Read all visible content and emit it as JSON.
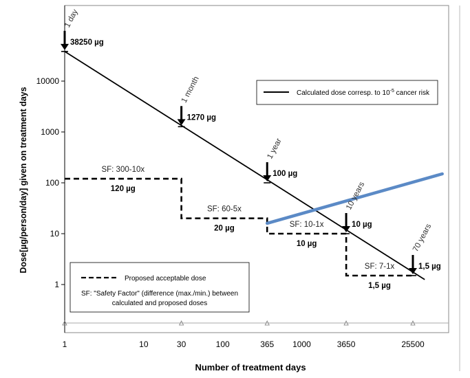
{
  "chart_data": {
    "type": "line",
    "xlabel": "Number of treatment days",
    "ylabel": "Dose[µg/person/day]  given on treatment days",
    "x_scale": "log",
    "y_scale": "log",
    "xlim": [
      1,
      60000
    ],
    "ylim": [
      0.09,
      50000
    ],
    "x_ticks": [
      {
        "value": 1,
        "label": "1"
      },
      {
        "value": 10,
        "label": "10"
      },
      {
        "value": 30,
        "label": "30"
      },
      {
        "value": 100,
        "label": "100"
      },
      {
        "value": 365,
        "label": "365"
      },
      {
        "value": 1000,
        "label": "1000"
      },
      {
        "value": 3650,
        "label": "3650"
      },
      {
        "value": 25500,
        "label": "25500"
      }
    ],
    "y_ticks": [
      {
        "value": 10000,
        "label": "10000"
      },
      {
        "value": 1000,
        "label": "1000"
      },
      {
        "value": 100,
        "label": "100"
      },
      {
        "value": 10,
        "label": "10"
      },
      {
        "value": 1,
        "label": "1"
      }
    ],
    "grid": false,
    "series": [
      {
        "name": "Calculated dose corresp. to 10⁻⁵ cancer risk",
        "style": "solid",
        "color": "#000000",
        "x": [
          1,
          36000
        ],
        "y": [
          38250,
          1.25
        ]
      },
      {
        "name": "Proposed acceptable dose",
        "style": "dashed",
        "color": "#000000",
        "x": [
          1,
          30,
          30,
          365,
          365,
          3650,
          3650,
          25500
        ],
        "y": [
          120,
          120,
          20,
          20,
          10,
          10,
          1.5,
          1.5
        ]
      },
      {
        "name": "",
        "style": "solid",
        "color": "#5b8ac6",
        "x": [
          365,
          60000
        ],
        "y": [
          16,
          150
        ]
      }
    ],
    "time_markers": [
      {
        "x": 1,
        "y": 38250,
        "period": "1 day",
        "value": "38250 µg"
      },
      {
        "x": 30,
        "y": 1270,
        "period": "1 month",
        "value": "1270 µg"
      },
      {
        "x": 365,
        "y": 100,
        "period": "1 year",
        "value": "100 µg"
      },
      {
        "x": 3650,
        "y": 10,
        "period": "10 years",
        "value": "10 µg"
      },
      {
        "x": 25500,
        "y": 1.5,
        "period": "70 years",
        "value": "1,5 µg"
      }
    ],
    "segment_labels": [
      {
        "sf": "SF: 300-10x",
        "dose": "120 µg"
      },
      {
        "sf": "SF: 60-5x",
        "dose": "20 µg"
      },
      {
        "sf": "SF: 10-1x",
        "dose": "10 µg"
      },
      {
        "sf": "SF: 7-1x",
        "dose": "1,5 µg"
      }
    ],
    "legend_top": {
      "placement": "top-right",
      "entry": "Calculated dose corresp. to 10",
      "superscript": "-5",
      "suffix": " cancer risk"
    },
    "legend_bottom": {
      "placement": "bottom-left",
      "entry": "Proposed acceptable dose",
      "note_line1": "SF: \"Safety Factor\" (difference (max./min.) between",
      "note_line2": "calculated and proposed doses"
    }
  }
}
